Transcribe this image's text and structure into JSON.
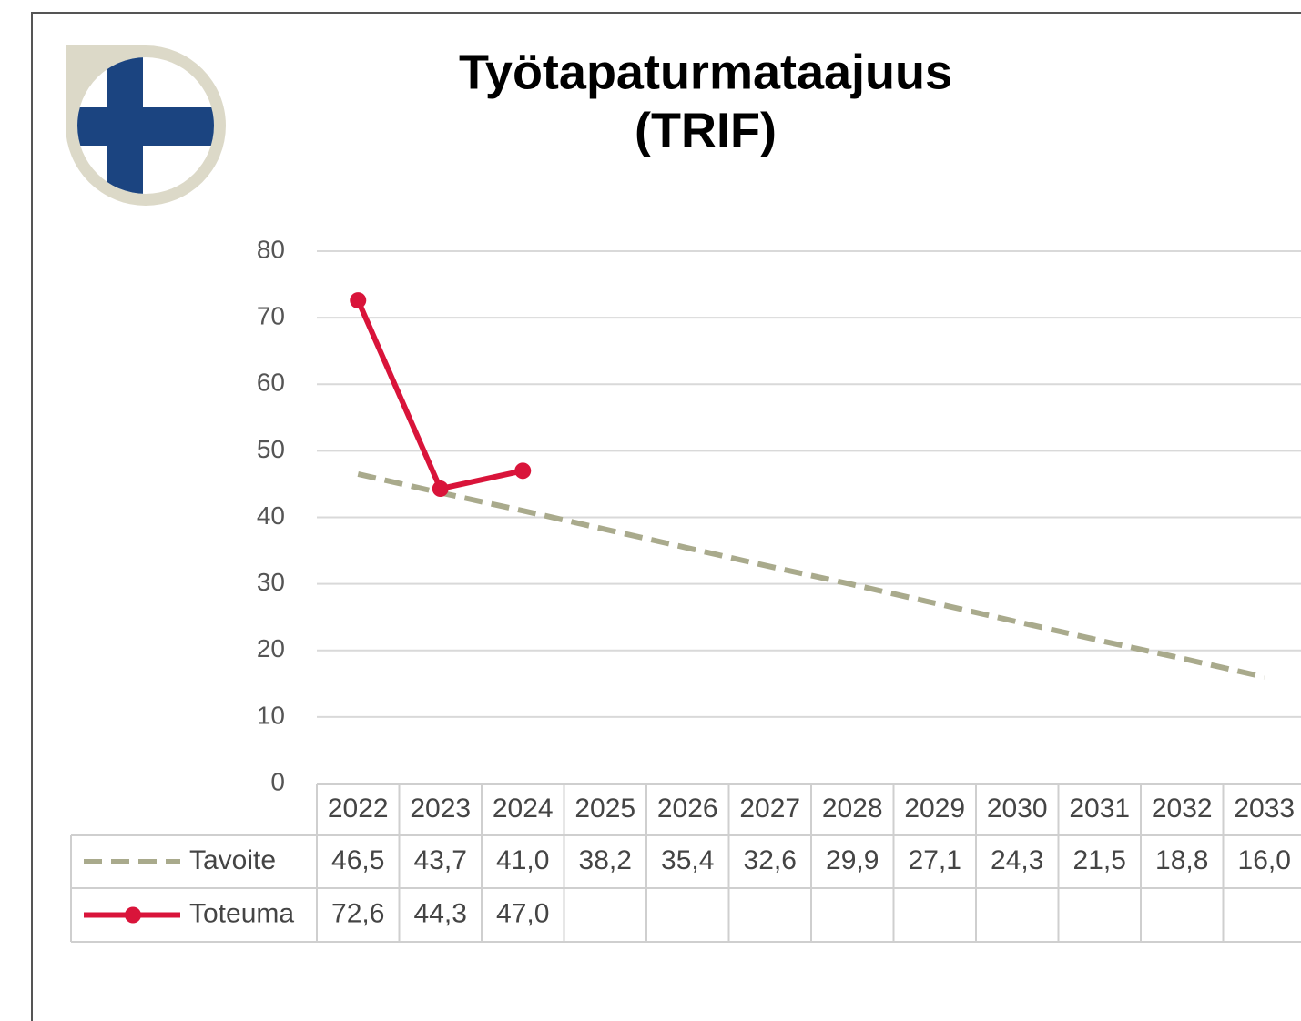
{
  "chart_data": {
    "type": "line",
    "title": [
      "Työtapaturmataajuus",
      "(TRIF)"
    ],
    "categories": [
      "2022",
      "2023",
      "2024",
      "2025",
      "2026",
      "2027",
      "2028",
      "2029",
      "2030",
      "2031",
      "2032",
      "2033"
    ],
    "series": [
      {
        "name": "Tavoite",
        "color": "#a9aa8c",
        "dashed": true,
        "values": [
          46.5,
          43.7,
          41.0,
          38.2,
          35.4,
          32.6,
          29.9,
          27.1,
          24.3,
          21.5,
          18.8,
          16.0
        ],
        "value_labels": [
          "46,5",
          "43,7",
          "41,0",
          "38,2",
          "35,4",
          "32,6",
          "29,9",
          "27,1",
          "24,3",
          "21,5",
          "18,8",
          "16,0"
        ]
      },
      {
        "name": "Toteuma",
        "color": "#d9143a",
        "markers": true,
        "values": [
          72.6,
          44.3,
          47.0,
          null,
          null,
          null,
          null,
          null,
          null,
          null,
          null,
          null
        ],
        "value_labels": [
          "72,6",
          "44,3",
          "47,0",
          null,
          null,
          null,
          null,
          null,
          null,
          null,
          null,
          null
        ]
      }
    ],
    "ylim": [
      0,
      80
    ],
    "yticks": [
      0,
      10,
      20,
      30,
      40,
      50,
      60,
      70,
      80
    ],
    "grid": true
  }
}
